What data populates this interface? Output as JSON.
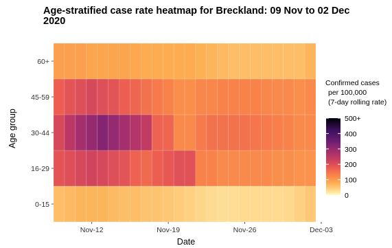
{
  "chart_data": {
    "type": "heatmap",
    "title_line1": "Age-stratified case rate heatmap for Breckland: 09 Nov to 02 Dec",
    "title_line2": "2020",
    "xlabel": "Date",
    "ylabel": "Age group",
    "dates": [
      "2020-11-09",
      "2020-11-10",
      "2020-11-11",
      "2020-11-12",
      "2020-11-13",
      "2020-11-14",
      "2020-11-15",
      "2020-11-16",
      "2020-11-17",
      "2020-11-18",
      "2020-11-19",
      "2020-11-20",
      "2020-11-21",
      "2020-11-22",
      "2020-11-23",
      "2020-11-24",
      "2020-11-25",
      "2020-11-26",
      "2020-11-27",
      "2020-11-28",
      "2020-11-29",
      "2020-11-30",
      "2020-12-01",
      "2020-12-02"
    ],
    "x_ticks": [
      {
        "date": "2020-11-12",
        "label": "Nov-12"
      },
      {
        "date": "2020-11-19",
        "label": "Nov-19"
      },
      {
        "date": "2020-11-26",
        "label": "Nov-26"
      },
      {
        "date": "2020-12-03",
        "label": "Dec-03"
      }
    ],
    "age_groups": [
      "60+",
      "45-59",
      "30-44",
      "16-29",
      "0-15"
    ],
    "values": [
      [
        95,
        95,
        95,
        90,
        90,
        90,
        90,
        85,
        80,
        80,
        80,
        80,
        80,
        75,
        70,
        65,
        60,
        60,
        60,
        60,
        60,
        60,
        60,
        70
      ],
      [
        175,
        190,
        200,
        210,
        200,
        190,
        175,
        165,
        150,
        140,
        130,
        115,
        115,
        125,
        125,
        130,
        130,
        130,
        130,
        125,
        120,
        120,
        115,
        120
      ],
      [
        210,
        250,
        280,
        300,
        320,
        300,
        280,
        260,
        240,
        170,
        165,
        120,
        120,
        140,
        150,
        150,
        150,
        150,
        145,
        140,
        135,
        130,
        120,
        120
      ],
      [
        190,
        200,
        210,
        220,
        210,
        200,
        190,
        170,
        160,
        175,
        185,
        195,
        195,
        130,
        130,
        120,
        120,
        120,
        120,
        120,
        115,
        115,
        110,
        110
      ],
      [
        60,
        65,
        70,
        70,
        70,
        65,
        60,
        60,
        55,
        55,
        50,
        45,
        40,
        35,
        30,
        28,
        28,
        30,
        30,
        30,
        30,
        32,
        40,
        50
      ]
    ],
    "legend": {
      "title_lines": [
        "Confirmed cases",
        "per 100,000",
        "(7-day rolling rate)"
      ],
      "min": 0,
      "max": 500,
      "ticks": [
        {
          "value": 500,
          "label": "500+"
        },
        {
          "value": 400,
          "label": "400"
        },
        {
          "value": 300,
          "label": "300"
        },
        {
          "value": 200,
          "label": "200"
        },
        {
          "value": 100,
          "label": "100"
        },
        {
          "value": 0,
          "label": "0"
        }
      ]
    },
    "colormap": [
      "#fcfdbf",
      "#fed081",
      "#fdac4f",
      "#f9824a",
      "#ea5a53",
      "#c93e61",
      "#9e2c6f",
      "#6b1d72",
      "#3e1160",
      "#000004"
    ],
    "colormap_stops": [
      0,
      40,
      80,
      130,
      180,
      230,
      290,
      350,
      420,
      500
    ],
    "panel_background": "#ebebeb"
  }
}
